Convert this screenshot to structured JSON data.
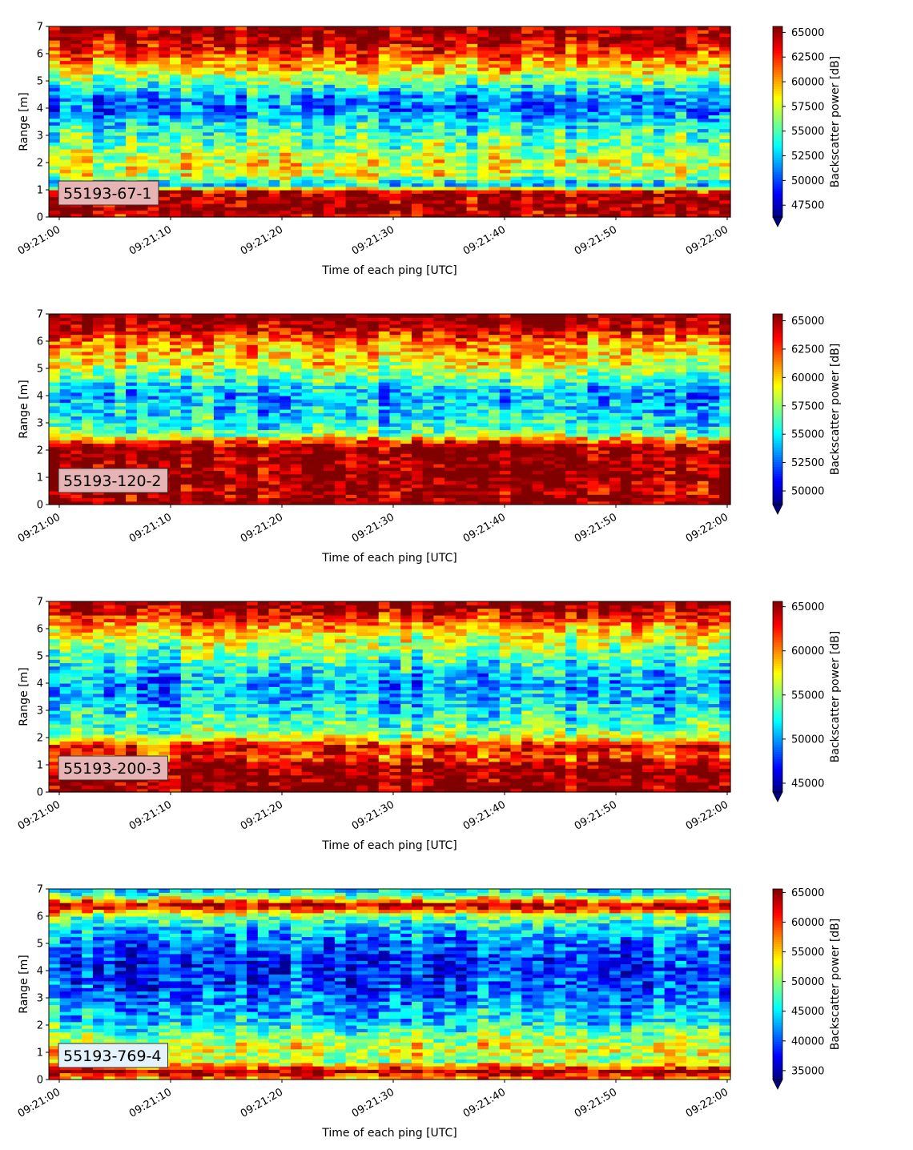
{
  "chart_data": [
    {
      "type": "heatmap",
      "label": "55193-67-1",
      "label_box_color": "#e6b4b4",
      "xlabel": "Time of each ping [UTC]",
      "ylabel": "Range [m]",
      "colorbar_label": "Backscatter power [dB]",
      "colormap": "jet",
      "x_ticks": [
        "09:21:00",
        "09:21:10",
        "09:21:20",
        "09:21:30",
        "09:21:40",
        "09:21:50",
        "09:22:00"
      ],
      "y_ticks": [
        "0",
        "1",
        "2",
        "3",
        "4",
        "5",
        "6",
        "7"
      ],
      "ylim": [
        0,
        7
      ],
      "colorbar_ticks": [
        "47500",
        "50000",
        "52500",
        "55000",
        "57500",
        "60000",
        "62500",
        "65000"
      ],
      "clim": [
        46300,
        65600
      ],
      "profile": [
        {
          "range": 0.1,
          "value": 64000
        },
        {
          "range": 0.3,
          "value": 65500
        },
        {
          "range": 0.6,
          "value": 64500
        },
        {
          "range": 0.9,
          "value": 65000
        },
        {
          "range": 1.2,
          "value": 52000
        },
        {
          "range": 1.5,
          "value": 57000
        },
        {
          "range": 2.0,
          "value": 58000
        },
        {
          "range": 2.5,
          "value": 56000
        },
        {
          "range": 3.0,
          "value": 55000
        },
        {
          "range": 3.5,
          "value": 53500
        },
        {
          "range": 4.0,
          "value": 50500
        },
        {
          "range": 4.5,
          "value": 52000
        },
        {
          "range": 5.0,
          "value": 56000
        },
        {
          "range": 5.5,
          "value": 59000
        },
        {
          "range": 6.0,
          "value": 62000
        },
        {
          "range": 6.5,
          "value": 64500
        },
        {
          "range": 6.9,
          "value": 65500
        }
      ]
    },
    {
      "type": "heatmap",
      "label": "55193-120-2",
      "label_box_color": "#e6b4b4",
      "xlabel": "Time of each ping [UTC]",
      "ylabel": "Range [m]",
      "colorbar_label": "Backscatter power [dB]",
      "colormap": "jet",
      "x_ticks": [
        "09:21:00",
        "09:21:10",
        "09:21:20",
        "09:21:30",
        "09:21:40",
        "09:21:50",
        "09:22:00"
      ],
      "y_ticks": [
        "0",
        "1",
        "2",
        "3",
        "4",
        "5",
        "6",
        "7"
      ],
      "ylim": [
        0,
        7
      ],
      "colorbar_ticks": [
        "50000",
        "52500",
        "55000",
        "57500",
        "60000",
        "62500",
        "65000"
      ],
      "clim": [
        48800,
        65600
      ],
      "profile": [
        {
          "range": 0.1,
          "value": 65500
        },
        {
          "range": 0.5,
          "value": 64500
        },
        {
          "range": 1.0,
          "value": 65500
        },
        {
          "range": 1.5,
          "value": 65000
        },
        {
          "range": 2.0,
          "value": 65500
        },
        {
          "range": 2.3,
          "value": 63000
        },
        {
          "range": 2.6,
          "value": 57000
        },
        {
          "range": 3.0,
          "value": 55000
        },
        {
          "range": 3.5,
          "value": 54500
        },
        {
          "range": 4.0,
          "value": 53500
        },
        {
          "range": 4.5,
          "value": 55500
        },
        {
          "range": 5.0,
          "value": 58000
        },
        {
          "range": 5.5,
          "value": 60000
        },
        {
          "range": 6.0,
          "value": 61000
        },
        {
          "range": 6.5,
          "value": 64500
        },
        {
          "range": 6.9,
          "value": 65500
        }
      ]
    },
    {
      "type": "heatmap",
      "label": "55193-200-3",
      "label_box_color": "#e6b4b4",
      "xlabel": "Time of each ping [UTC]",
      "ylabel": "Range [m]",
      "colorbar_label": "Backscatter power [dB]",
      "colormap": "jet",
      "x_ticks": [
        "09:21:00",
        "09:21:10",
        "09:21:20",
        "09:21:30",
        "09:21:40",
        "09:21:50",
        "09:22:00"
      ],
      "y_ticks": [
        "0",
        "1",
        "2",
        "3",
        "4",
        "5",
        "6",
        "7"
      ],
      "ylim": [
        0,
        7
      ],
      "colorbar_ticks": [
        "45000",
        "50000",
        "55000",
        "60000",
        "65000"
      ],
      "clim": [
        44000,
        65600
      ],
      "profile": [
        {
          "range": 0.1,
          "value": 65500
        },
        {
          "range": 0.5,
          "value": 65000
        },
        {
          "range": 1.0,
          "value": 64500
        },
        {
          "range": 1.3,
          "value": 61000
        },
        {
          "range": 1.7,
          "value": 63000
        },
        {
          "range": 2.0,
          "value": 56000
        },
        {
          "range": 2.5,
          "value": 53500
        },
        {
          "range": 3.0,
          "value": 52000
        },
        {
          "range": 3.5,
          "value": 50500
        },
        {
          "range": 4.0,
          "value": 50000
        },
        {
          "range": 4.5,
          "value": 51500
        },
        {
          "range": 5.0,
          "value": 54000
        },
        {
          "range": 5.5,
          "value": 56000
        },
        {
          "range": 6.0,
          "value": 58500
        },
        {
          "range": 6.5,
          "value": 63000
        },
        {
          "range": 6.9,
          "value": 65500
        }
      ]
    },
    {
      "type": "heatmap",
      "label": "55193-769-4",
      "label_box_color": "#e4f2fb",
      "xlabel": "Time of each ping [UTC]",
      "ylabel": "Range [m]",
      "colorbar_label": "Backscatter power [dB]",
      "colormap": "jet",
      "x_ticks": [
        "09:21:00",
        "09:21:10",
        "09:21:20",
        "09:21:30",
        "09:21:40",
        "09:21:50",
        "09:22:00"
      ],
      "y_ticks": [
        "0",
        "1",
        "2",
        "3",
        "4",
        "5",
        "6",
        "7"
      ],
      "ylim": [
        0,
        7
      ],
      "colorbar_ticks": [
        "35000",
        "40000",
        "45000",
        "50000",
        "55000",
        "60000",
        "65000"
      ],
      "clim": [
        33500,
        65600
      ],
      "profile": [
        {
          "range": 0.1,
          "value": 58000
        },
        {
          "range": 0.3,
          "value": 65500
        },
        {
          "range": 0.7,
          "value": 50000
        },
        {
          "range": 1.0,
          "value": 53000
        },
        {
          "range": 1.4,
          "value": 52000
        },
        {
          "range": 2.0,
          "value": 46000
        },
        {
          "range": 2.5,
          "value": 43500
        },
        {
          "range": 3.0,
          "value": 41500
        },
        {
          "range": 3.5,
          "value": 40000
        },
        {
          "range": 4.0,
          "value": 39000
        },
        {
          "range": 4.5,
          "value": 39500
        },
        {
          "range": 5.0,
          "value": 41000
        },
        {
          "range": 5.5,
          "value": 44000
        },
        {
          "range": 6.0,
          "value": 49000
        },
        {
          "range": 6.4,
          "value": 65000
        },
        {
          "range": 6.7,
          "value": 52000
        },
        {
          "range": 6.9,
          "value": 45000
        }
      ]
    }
  ]
}
